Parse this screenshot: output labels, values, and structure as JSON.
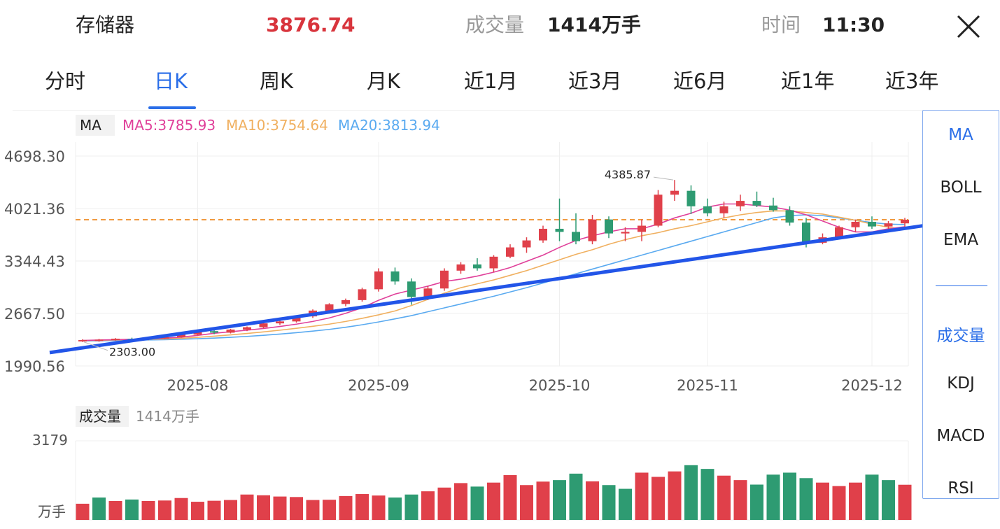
{
  "header": {
    "name": "存储器",
    "price": "3876.74",
    "volume_label": "成交量",
    "volume_value": "1414万手",
    "time_label": "时间",
    "time_value": "11:30"
  },
  "tabs": [
    {
      "label": "分时"
    },
    {
      "label": "日K"
    },
    {
      "label": "周K"
    },
    {
      "label": "月K"
    },
    {
      "label": "近1月"
    },
    {
      "label": "近3月"
    },
    {
      "label": "近6月"
    },
    {
      "label": "近1年"
    },
    {
      "label": "近3年"
    }
  ],
  "active_tab": 1,
  "indicators": {
    "main": [
      "MA",
      "BOLL",
      "EMA"
    ],
    "sub": [
      "成交量",
      "KDJ",
      "MACD",
      "RSI"
    ],
    "active_main": "MA",
    "active_sub": "成交量"
  },
  "colors": {
    "up": "#e0404a",
    "down": "#2e9b72",
    "ma5": "#e0409a",
    "ma10": "#f0b060",
    "ma20": "#5aaaf0",
    "accent": "#2a6ee8",
    "ref_line": "#f09a40",
    "trend_line": "#2255e8"
  },
  "icons": {
    "close": "close-icon"
  },
  "chart_data": [
    {
      "type": "candlestick",
      "legend": {
        "label": "MA",
        "ma5": "MA5:3785.93",
        "ma10": "MA10:3754.64",
        "ma20": "MA20:3813.94"
      },
      "y_ticks": [
        "4698.30",
        "4021.36",
        "3344.43",
        "2667.50",
        "1990.56"
      ],
      "ylim": [
        1990.56,
        4698.3
      ],
      "x_ticks": [
        {
          "label": "2025-08",
          "index": 7
        },
        {
          "label": "2025-09",
          "index": 18
        },
        {
          "label": "2025-10",
          "index": 29
        },
        {
          "label": "2025-11",
          "index": 38
        },
        {
          "label": "2025-12",
          "index": 48
        }
      ],
      "annotations": {
        "high": "4385.87",
        "low": "2303.00"
      },
      "reference_value": 3876.74,
      "trend_line": {
        "from": [
          -2,
          2163
        ],
        "to": [
          55,
          3919
        ]
      },
      "candles": [
        [
          2310,
          2335,
          2300,
          2325
        ],
        [
          2325,
          2340,
          2303,
          2330
        ],
        [
          2330,
          2350,
          2318,
          2342
        ],
        [
          2340,
          2355,
          2325,
          2333
        ],
        [
          2333,
          2355,
          2322,
          2350
        ],
        [
          2348,
          2375,
          2340,
          2362
        ],
        [
          2362,
          2410,
          2355,
          2398
        ],
        [
          2395,
          2455,
          2385,
          2440
        ],
        [
          2440,
          2460,
          2400,
          2420
        ],
        [
          2420,
          2470,
          2410,
          2460
        ],
        [
          2460,
          2500,
          2440,
          2490
        ],
        [
          2490,
          2550,
          2475,
          2540
        ],
        [
          2540,
          2580,
          2520,
          2565
        ],
        [
          2565,
          2640,
          2550,
          2630
        ],
        [
          2630,
          2720,
          2610,
          2705
        ],
        [
          2700,
          2800,
          2690,
          2785
        ],
        [
          2790,
          2860,
          2760,
          2840
        ],
        [
          2840,
          3000,
          2820,
          2980
        ],
        [
          2980,
          3250,
          2950,
          3210
        ],
        [
          3210,
          3260,
          3040,
          3080
        ],
        [
          3080,
          3120,
          2780,
          2880
        ],
        [
          2880,
          3020,
          2840,
          2990
        ],
        [
          2990,
          3250,
          2960,
          3220
        ],
        [
          3220,
          3330,
          3180,
          3300
        ],
        [
          3300,
          3380,
          3220,
          3250
        ],
        [
          3250,
          3420,
          3200,
          3400
        ],
        [
          3400,
          3560,
          3380,
          3520
        ],
        [
          3520,
          3650,
          3450,
          3610
        ],
        [
          3610,
          3800,
          3580,
          3760
        ],
        [
          3760,
          4150,
          3600,
          3720
        ],
        [
          3720,
          3960,
          3560,
          3600
        ],
        [
          3600,
          3940,
          3560,
          3880
        ],
        [
          3880,
          3920,
          3640,
          3700
        ],
        [
          3700,
          3780,
          3600,
          3720
        ],
        [
          3720,
          3880,
          3600,
          3800
        ],
        [
          3800,
          4260,
          3780,
          4200
        ],
        [
          4200,
          4390,
          4120,
          4250
        ],
        [
          4250,
          4320,
          3950,
          4050
        ],
        [
          4050,
          4150,
          3920,
          3960
        ],
        [
          3960,
          4110,
          3900,
          4050
        ],
        [
          4050,
          4200,
          3990,
          4120
        ],
        [
          4120,
          4240,
          4040,
          4060
        ],
        [
          4060,
          4160,
          3980,
          4000
        ],
        [
          4000,
          4050,
          3800,
          3840
        ],
        [
          3840,
          3900,
          3520,
          3580
        ],
        [
          3580,
          3700,
          3560,
          3650
        ],
        [
          3650,
          3800,
          3620,
          3780
        ],
        [
          3780,
          3880,
          3720,
          3850
        ],
        [
          3850,
          3920,
          3760,
          3790
        ],
        [
          3790,
          3860,
          3740,
          3830
        ],
        [
          3830,
          3900,
          3780,
          3877
        ]
      ],
      "ma5": [
        2320,
        2325,
        2330,
        2335,
        2340,
        2350,
        2362,
        2385,
        2412,
        2432,
        2452,
        2474,
        2500,
        2530,
        2565,
        2610,
        2670,
        2742,
        2838,
        2918,
        2970,
        3020,
        3080,
        3110,
        3150,
        3200,
        3260,
        3340,
        3420,
        3520,
        3610,
        3670,
        3720,
        3760,
        3760,
        3820,
        3900,
        3960,
        4040,
        4080,
        4080,
        4060,
        4040,
        4000,
        3940,
        3860,
        3780,
        3720,
        3720,
        3760,
        3785.93
      ],
      "ma10": [
        2318,
        2322,
        2326,
        2330,
        2334,
        2340,
        2348,
        2360,
        2375,
        2392,
        2410,
        2430,
        2452,
        2476,
        2502,
        2530,
        2565,
        2605,
        2650,
        2700,
        2770,
        2850,
        2930,
        3000,
        3050,
        3100,
        3160,
        3220,
        3290,
        3360,
        3430,
        3490,
        3560,
        3620,
        3670,
        3710,
        3760,
        3800,
        3850,
        3900,
        3940,
        3970,
        3990,
        3990,
        3970,
        3950,
        3910,
        3870,
        3820,
        3780,
        3754.64
      ],
      "ma20": [
        2312,
        2315,
        2318,
        2322,
        2326,
        2330,
        2335,
        2342,
        2350,
        2360,
        2372,
        2386,
        2402,
        2420,
        2440,
        2462,
        2490,
        2522,
        2558,
        2598,
        2640,
        2690,
        2740,
        2790,
        2840,
        2890,
        2945,
        3000,
        3060,
        3120,
        3180,
        3240,
        3300,
        3360,
        3420,
        3480,
        3540,
        3600,
        3660,
        3720,
        3780,
        3840,
        3900,
        3930,
        3940,
        3930,
        3900,
        3870,
        3840,
        3820,
        3813.94
      ]
    },
    {
      "type": "bar",
      "label": "成交量",
      "value_text": "1414万手",
      "y_ticks": [
        "3179",
        "万手"
      ],
      "ylim": [
        0,
        3179
      ],
      "values": [
        650,
        900,
        760,
        820,
        760,
        780,
        880,
        730,
        770,
        800,
        1020,
        990,
        940,
        920,
        800,
        810,
        960,
        1040,
        980,
        900,
        1020,
        1150,
        1300,
        1480,
        1340,
        1500,
        1800,
        1400,
        1540,
        1600,
        1860,
        1550,
        1400,
        1250,
        1900,
        1730,
        1950,
        2200,
        2050,
        1780,
        1600,
        1420,
        1820,
        1900,
        1680,
        1500,
        1360,
        1500,
        1820,
        1600,
        1414
      ],
      "up": [
        true,
        false,
        true,
        false,
        true,
        true,
        true,
        true,
        true,
        true,
        true,
        true,
        true,
        true,
        true,
        true,
        true,
        true,
        true,
        false,
        false,
        true,
        true,
        true,
        false,
        true,
        true,
        true,
        true,
        false,
        false,
        true,
        false,
        false,
        true,
        true,
        true,
        false,
        false,
        true,
        true,
        false,
        false,
        false,
        false,
        true,
        true,
        true,
        false,
        false,
        true
      ]
    }
  ]
}
